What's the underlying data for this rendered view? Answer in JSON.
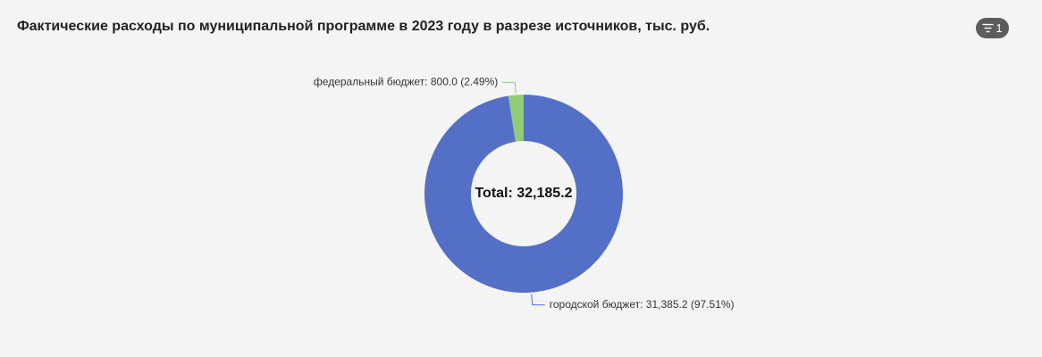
{
  "header": {
    "title": "Фактические расходы по муниципальной программе в 2023 году в разрезе источников, тыс. руб.",
    "filter_count": "1",
    "filter_icon": "filter-icon"
  },
  "chart_data": {
    "type": "pie",
    "variant": "donut",
    "center_label": "Total: 32,185.2",
    "slices": [
      {
        "name": "федеральный бюджет",
        "value": 800.0,
        "percent": 2.49,
        "color": "#91cc75",
        "label": "федеральный бюджет: 800.0 (2.49%)"
      },
      {
        "name": "городской бюджет",
        "value": 31385.2,
        "percent": 97.51,
        "color": "#5470c6",
        "label": "городской бюджет: 31,385.2 (97.51%)"
      }
    ]
  },
  "colors": {
    "background": "#f4f4f4",
    "badge": "#5c5c5c"
  }
}
